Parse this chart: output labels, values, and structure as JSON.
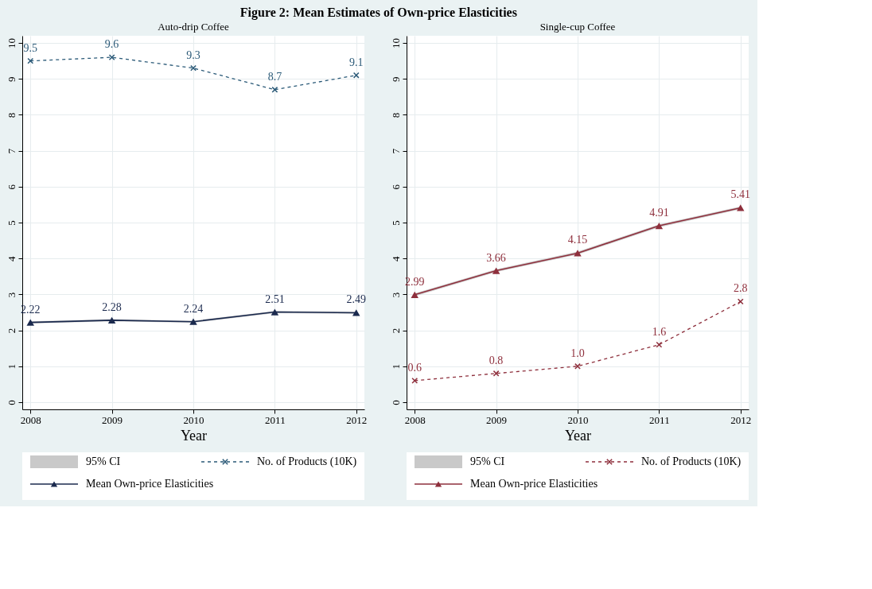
{
  "chart_data": [
    {
      "type": "line",
      "title": "Figure 2: Mean Estimates of Own-price Elasticities",
      "subtitle": "Auto-drip Coffee",
      "xlabel": "Year",
      "x": [
        2008,
        2009,
        2010,
        2011,
        2012
      ],
      "series": [
        {
          "name": "No. of Products (10K)",
          "color": "#2b5a78",
          "values": [
            9.5,
            9.6,
            9.3,
            8.7,
            9.1
          ],
          "marker": "cross",
          "line_style": "dashed",
          "value_labels": [
            "9.5",
            "9.6",
            "9.3",
            "8.7",
            "9.1"
          ]
        },
        {
          "name": "Mean Own-price Elasticities",
          "color": "#1b2a4e",
          "values": [
            2.22,
            2.28,
            2.24,
            2.51,
            2.49
          ],
          "marker": "triangle",
          "line_style": "solid",
          "value_labels": [
            "2.22",
            "2.28",
            "2.24",
            "2.51",
            "2.49"
          ],
          "lower": [
            2.19,
            2.25,
            2.21,
            2.48,
            2.46
          ],
          "upper": [
            2.25,
            2.31,
            2.27,
            2.54,
            2.52
          ]
        }
      ],
      "annotations": [
        "95% CI"
      ],
      "xlim": [
        2007.9,
        2012.1
      ],
      "xticks": [
        2008,
        2009,
        2010,
        2011,
        2012
      ],
      "ylim": [
        -0.2,
        10.2
      ],
      "yticks": [
        0,
        1,
        2,
        3,
        4,
        5,
        6,
        7,
        8,
        9,
        10
      ],
      "grid": true,
      "legend": "bottom"
    },
    {
      "type": "line",
      "subtitle": "Single-cup Coffee",
      "xlabel": "Year",
      "x": [
        2008,
        2009,
        2010,
        2011,
        2012
      ],
      "series": [
        {
          "name": "No. of Products (10K)",
          "color": "#8e2f3c",
          "values": [
            0.6,
            0.8,
            1.0,
            1.6,
            2.8
          ],
          "marker": "cross",
          "line_style": "dashed",
          "value_labels": [
            "0.6",
            "0.8",
            "1.0",
            "1.6",
            "2.8"
          ]
        },
        {
          "name": "Mean Own-price Elasticities",
          "color": "#8e2f3c",
          "values": [
            2.99,
            3.66,
            4.15,
            4.91,
            5.41
          ],
          "marker": "triangle",
          "line_style": "solid",
          "value_labels": [
            "2.99",
            "3.66",
            "4.15",
            "4.91",
            "5.41"
          ],
          "lower": [
            2.95,
            3.62,
            4.11,
            4.87,
            5.37
          ],
          "upper": [
            3.03,
            3.7,
            4.19,
            4.95,
            5.45
          ]
        }
      ],
      "annotations": [
        "95% CI"
      ],
      "xlim": [
        2007.9,
        2012.1
      ],
      "xticks": [
        2008,
        2009,
        2010,
        2011,
        2012
      ],
      "ylim": [
        -0.2,
        10.2
      ],
      "yticks": [
        0,
        1,
        2,
        3,
        4,
        5,
        6,
        7,
        8,
        9,
        10
      ],
      "grid": true,
      "legend": "bottom"
    }
  ]
}
